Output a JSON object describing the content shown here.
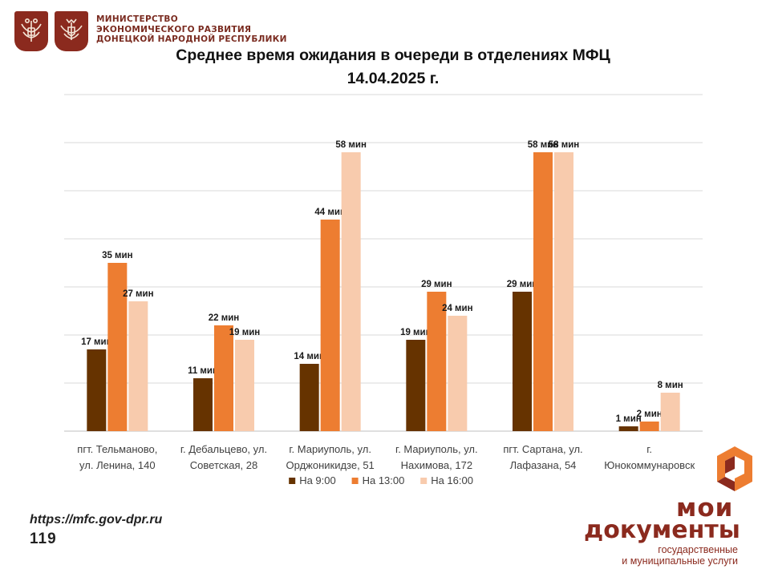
{
  "header": {
    "ministry_lines": [
      "Министерство",
      "экономического развития",
      "Донецкой Народной Республики"
    ]
  },
  "chart_data": {
    "type": "bar",
    "title": "Среднее время ожидания в очереди в отделениях МФЦ",
    "subtitle": "14.04.2025   г.",
    "xlabel": "",
    "ylabel": "",
    "ylim": [
      0,
      70
    ],
    "grid": true,
    "legend_position": "bottom",
    "categories": [
      [
        "пгт. Тельманово,",
        "ул. Ленина, 140"
      ],
      [
        "г. Дебальцево, ул.",
        "Советская, 28"
      ],
      [
        "г. Мариуполь, ул.",
        "Орджоникидзе, 51"
      ],
      [
        "г. Мариуполь, ул.",
        "Нахимова, 172"
      ],
      [
        "пгт. Сартана, ул.",
        "Лафазана, 54"
      ],
      [
        "г.",
        "Юнокоммунаровск"
      ]
    ],
    "series": [
      {
        "name": "На 9:00",
        "color": "#663300",
        "values": [
          17,
          11,
          14,
          19,
          29,
          1
        ],
        "labels": [
          "17 мин",
          "11 мин",
          "14 мин",
          "19 мин",
          "29 мин",
          "1 мин"
        ]
      },
      {
        "name": "На 13:00",
        "color": "#ed7d31",
        "values": [
          35,
          22,
          44,
          29,
          58,
          2
        ],
        "labels": [
          "35 мин",
          "22 мин",
          "44  мин",
          "29 мин",
          "58 мин",
          "2 мин"
        ]
      },
      {
        "name": "На 16:00",
        "color": "#f8cbad",
        "values": [
          27,
          19,
          58,
          24,
          58,
          8
        ],
        "labels": [
          "27 мин",
          "19 мин",
          "58 мин",
          "24 мин",
          "58 мин",
          "8 мин"
        ]
      }
    ]
  },
  "footer": {
    "url": "https://mfc.gov-dpr.ru",
    "number": "119",
    "brand_line1": "мои",
    "brand_line2": "документы",
    "brand_line3": "государственные",
    "brand_line4": "и муниципальные услуги"
  },
  "colors": {
    "brand": "#8b2a1e",
    "grid": "#d9d9d9"
  }
}
